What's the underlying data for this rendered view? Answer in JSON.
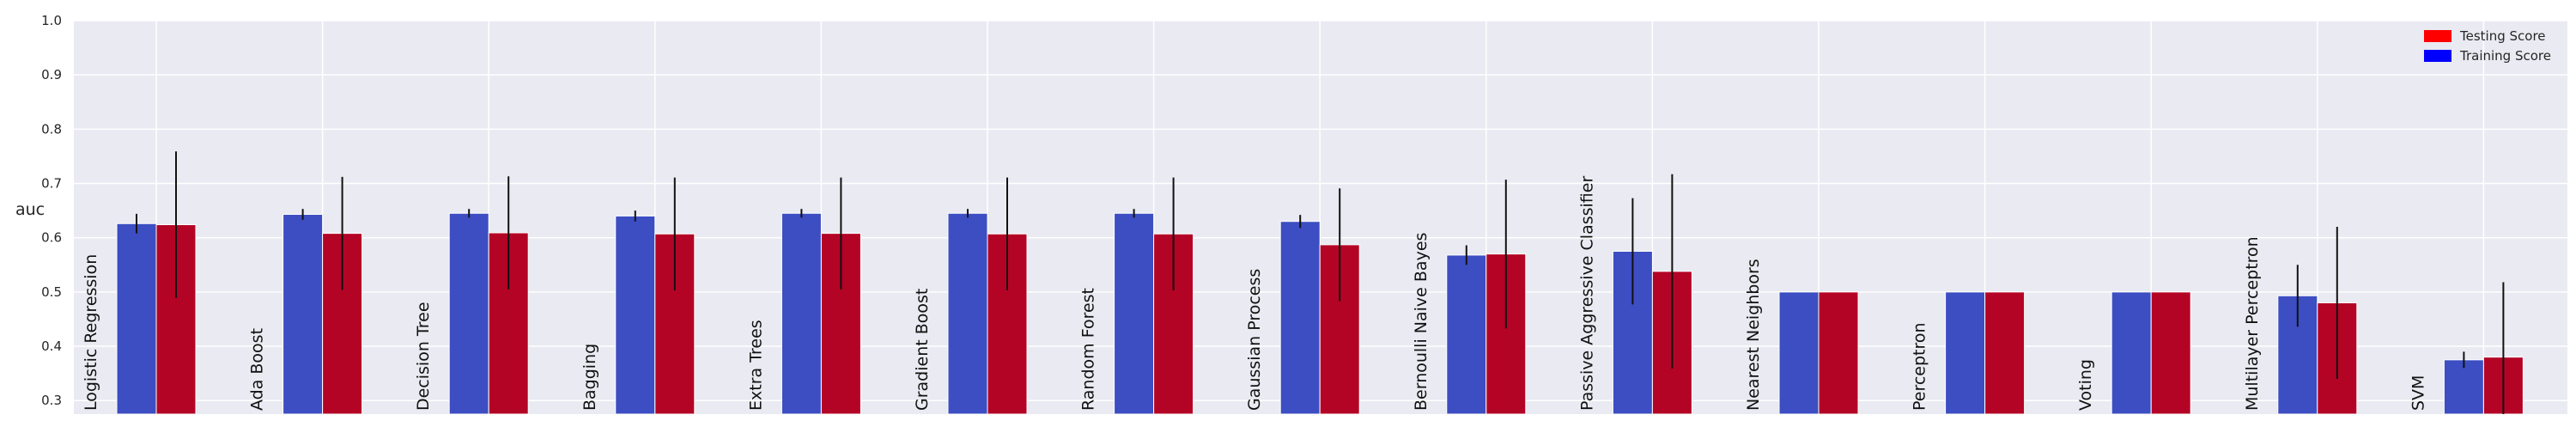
{
  "chart_data": {
    "type": "bar",
    "ylabel": "auc",
    "xlabel": "",
    "ylim": [
      0.275,
      1.0
    ],
    "yticks": [
      "0.3",
      "0.4",
      "0.5",
      "0.6",
      "0.7",
      "0.8",
      "0.9",
      "1.0"
    ],
    "grid": true,
    "legend_position": "top-right",
    "categories": [
      "Logistic Regression",
      "Ada Boost",
      "Decision Tree",
      "Bagging",
      "Extra Trees",
      "Gradient Boost",
      "Random Forest",
      "Gaussian Process",
      "Bernoulli Naive Bayes",
      "Passive Aggressive Classifier",
      "Nearest Neighbors",
      "Perceptron",
      "Voting",
      "Multilayer Perceptron",
      "SVM"
    ],
    "series": [
      {
        "name": "Training Score",
        "color": "#3c4ec2",
        "values": [
          0.626,
          0.643,
          0.645,
          0.64,
          0.645,
          0.645,
          0.645,
          0.63,
          0.568,
          0.575,
          0.5,
          0.5,
          0.5,
          0.493,
          0.375
        ],
        "errors": [
          0.018,
          0.01,
          0.008,
          0.01,
          0.008,
          0.008,
          0.008,
          0.012,
          0.018,
          0.098,
          0.0,
          0.0,
          0.0,
          0.057,
          0.015
        ]
      },
      {
        "name": "Testing Score",
        "color": "#b40426",
        "values": [
          0.624,
          0.608,
          0.609,
          0.607,
          0.608,
          0.607,
          0.607,
          0.587,
          0.57,
          0.538,
          0.5,
          0.5,
          0.5,
          0.48,
          0.38
        ],
        "errors": [
          0.135,
          0.104,
          0.104,
          0.104,
          0.103,
          0.104,
          0.104,
          0.104,
          0.137,
          0.179,
          0.0,
          0.0,
          0.0,
          0.14,
          0.138
        ]
      }
    ]
  },
  "legend": {
    "entries": [
      {
        "label": "Testing Score",
        "color": "#ff0000"
      },
      {
        "label": "Training Score",
        "color": "#0000ff"
      }
    ]
  }
}
